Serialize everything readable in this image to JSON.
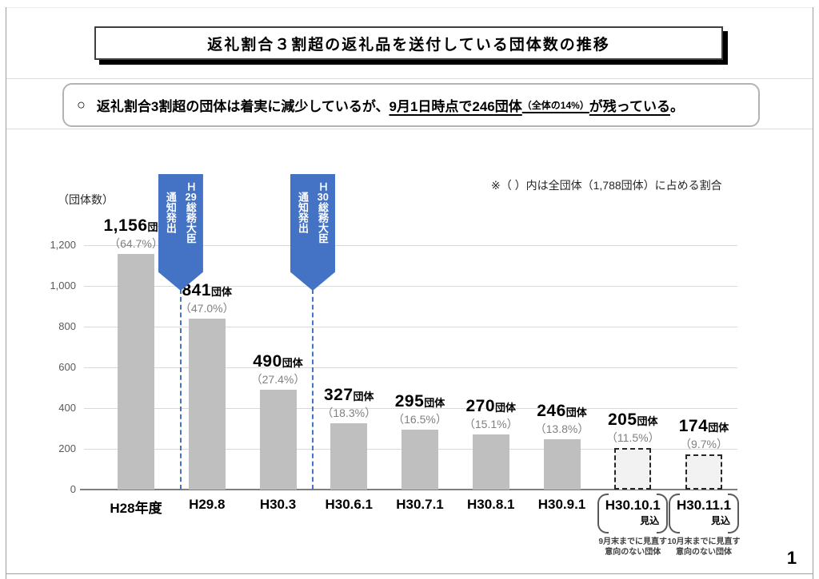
{
  "page": {
    "number": "1"
  },
  "title": {
    "text": "返礼割合３割超の返礼品を送付している団体数の推移"
  },
  "callout": {
    "bullet": "○",
    "prefix": "返礼割合3割超の団体は着実に減少しているが、",
    "underline_main": "9月1日時点で246団体",
    "underline_small": "（全体の14%）",
    "underline_tail": "が残っている",
    "suffix": "。"
  },
  "chart_data": {
    "type": "bar",
    "note": "※（ ）内は全団体（1,788団体）に占める割合",
    "unit_label": "（団体数）",
    "ylim": [
      0,
      1200
    ],
    "grid": true,
    "yticks": [
      {
        "value": 0,
        "label": "0"
      },
      {
        "value": 200,
        "label": "200"
      },
      {
        "value": 400,
        "label": "400"
      },
      {
        "value": 600,
        "label": "600"
      },
      {
        "value": 800,
        "label": "800"
      },
      {
        "value": 1000,
        "label": "1,000"
      },
      {
        "value": 1200,
        "label": "1,200"
      }
    ],
    "categories": [
      "H28年度",
      "H29.8",
      "H30.3",
      "H30.6.1",
      "H30.7.1",
      "H30.8.1",
      "H30.9.1",
      "H30.10.1",
      "H30.11.1"
    ],
    "values": [
      1156,
      841,
      490,
      327,
      295,
      270,
      246,
      205,
      174
    ],
    "value_labels": [
      "1,156",
      "841",
      "490",
      "327",
      "295",
      "270",
      "246",
      "205",
      "174"
    ],
    "value_suffix": "団体",
    "percent_labels": [
      "（64.7%）",
      "（47.0%）",
      "（27.4%）",
      "（18.3%）",
      "（16.5%）",
      "（15.1%）",
      "（13.8%）",
      "（11.5%）",
      "（9.7%）"
    ],
    "forecast_flags": [
      false,
      false,
      false,
      false,
      false,
      false,
      false,
      true,
      true
    ],
    "forecast_label": "見込",
    "forecast_captions": [
      "9月末までに見直す\n意向のない団体",
      "10月末までに見直す\n意向のない団体"
    ],
    "bar_color": "#bfbfbf",
    "forecast_fill": "#f2f2f2",
    "annotations": [
      {
        "prefix": "Ｈ",
        "tcy": "29",
        "rest": "総務大臣",
        "line2": "通知発出",
        "color": "#4472c4",
        "x_pos": 0.63
      },
      {
        "prefix": "Ｈ",
        "tcy": "30",
        "rest": "総務大臣",
        "line2": "通知発出",
        "color": "#4472c4",
        "x_pos": 2.49
      }
    ]
  }
}
